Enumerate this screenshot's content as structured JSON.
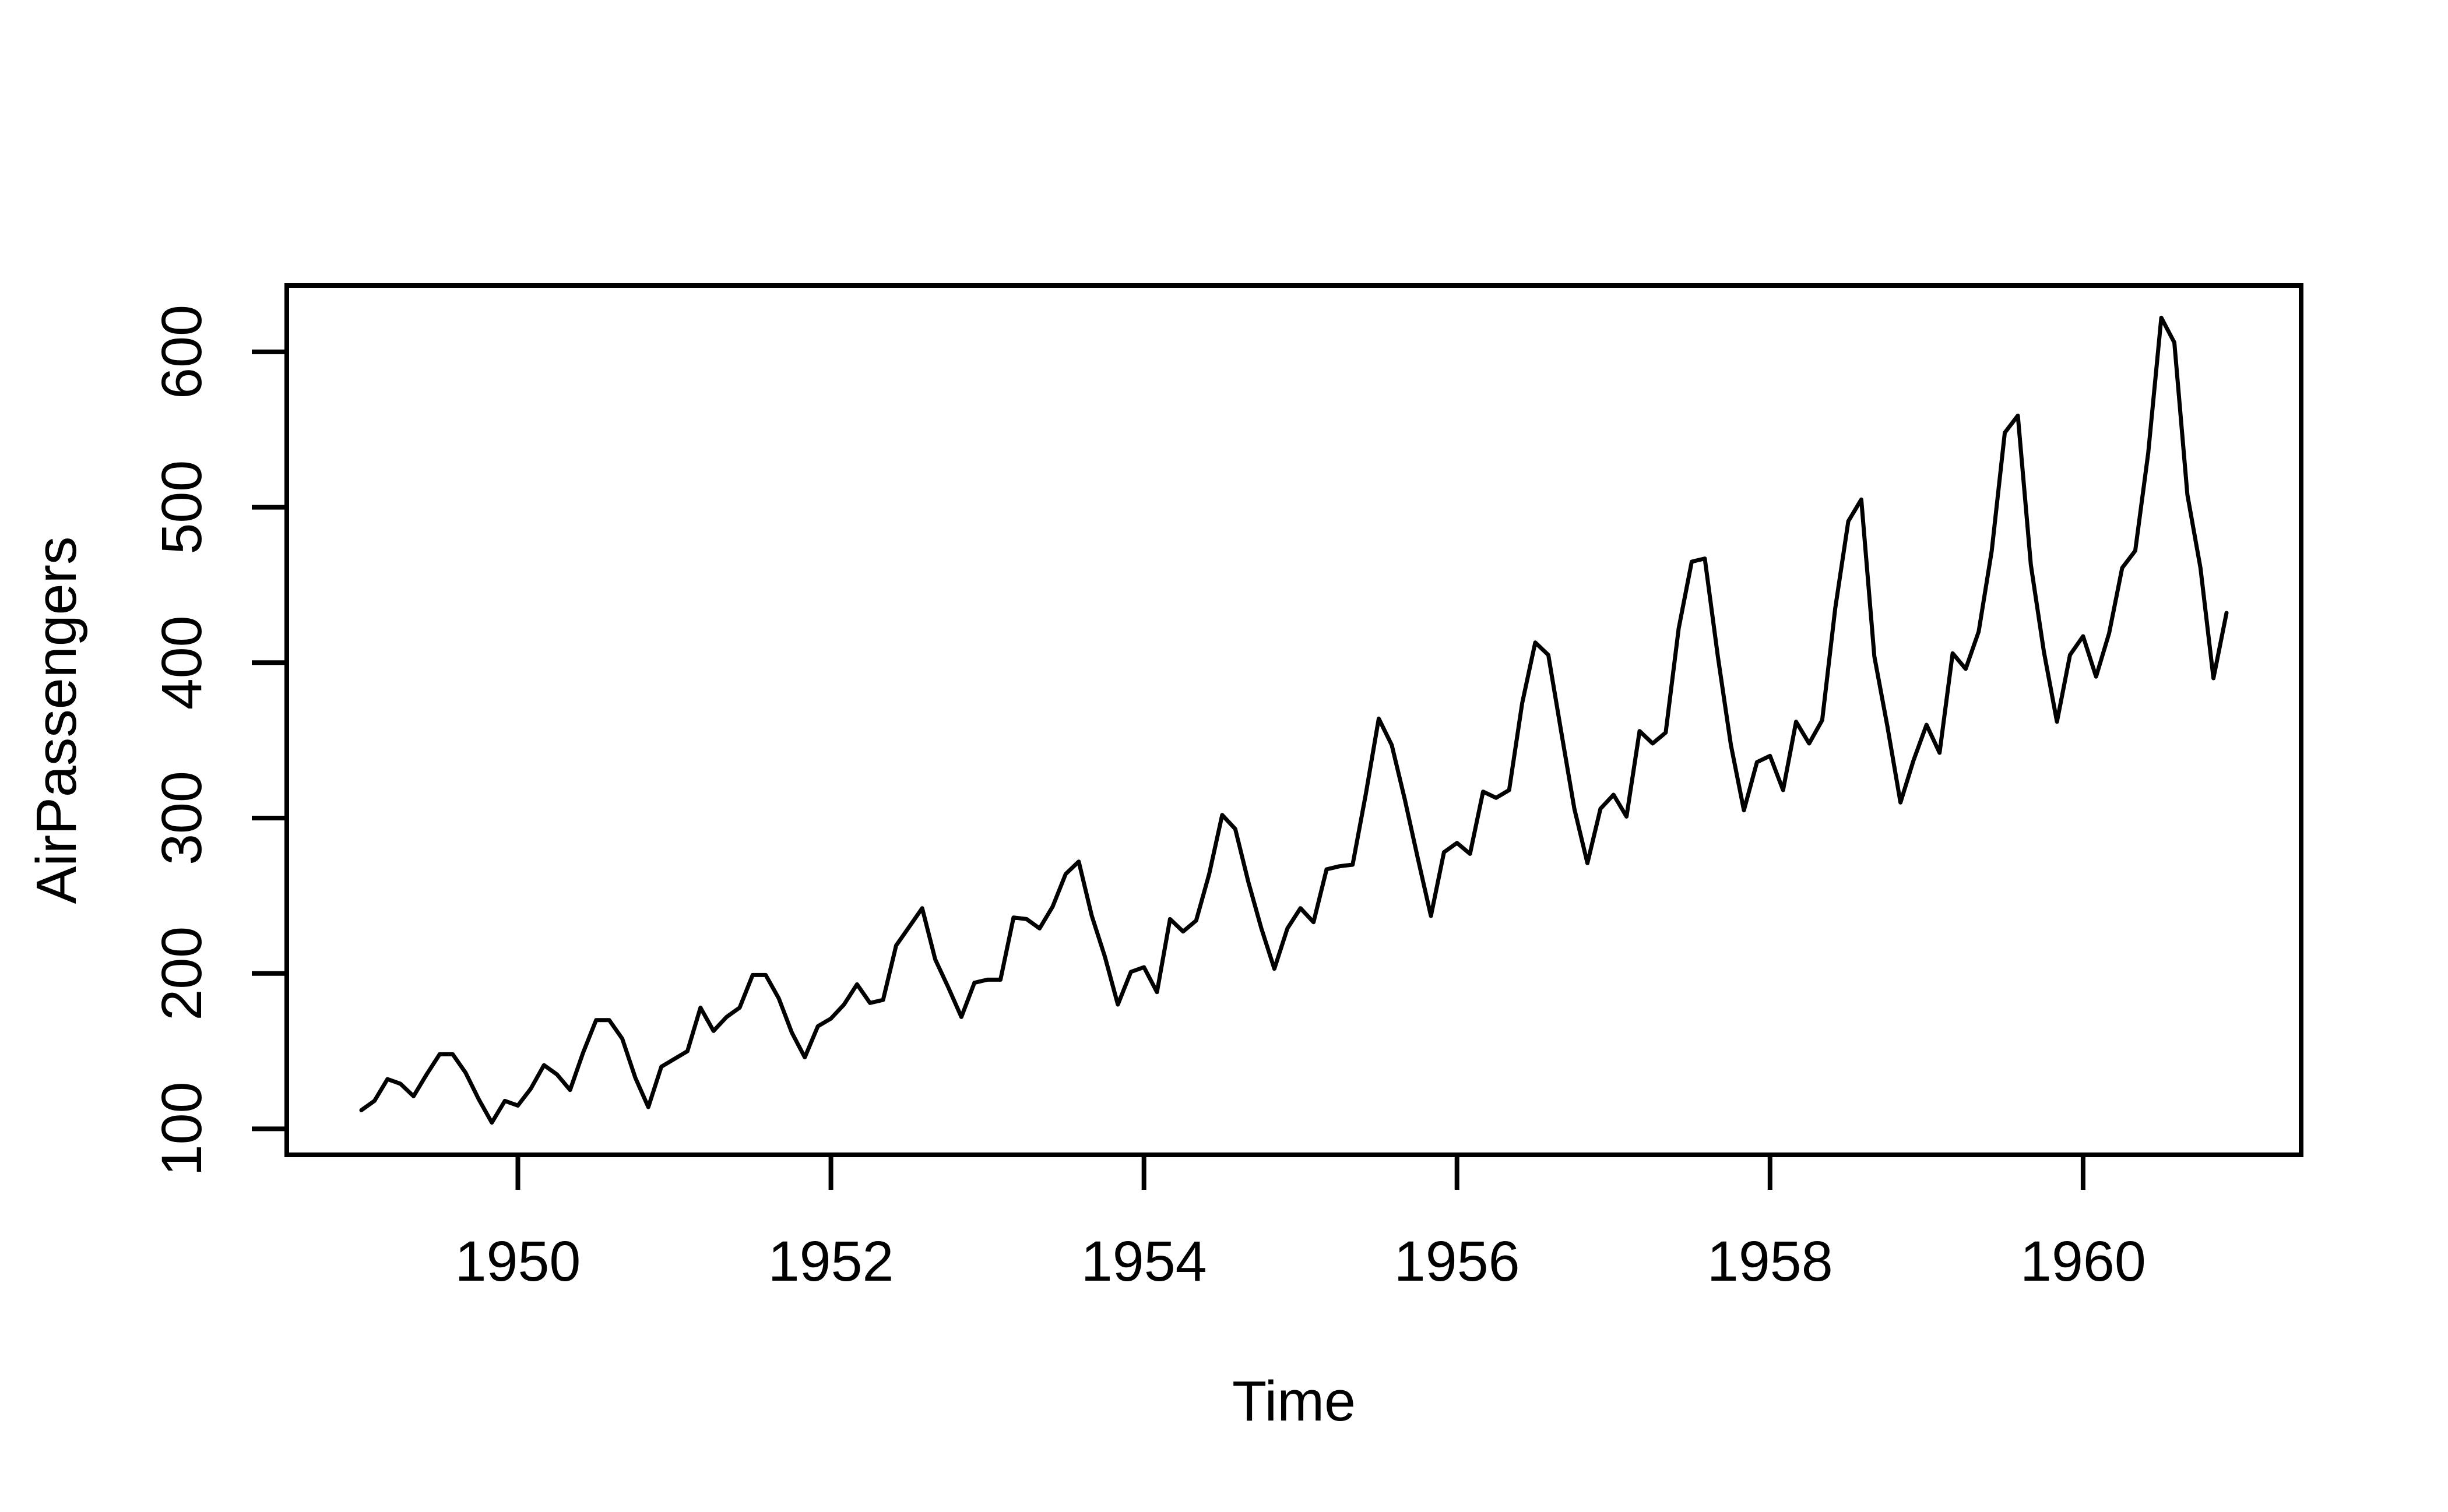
{
  "figure": {
    "background": "#FFFFFF",
    "foreground": "#000000"
  },
  "chart_data": {
    "type": "line",
    "title": "",
    "xlabel": "Time",
    "ylabel": "AirPassengers",
    "grid": false,
    "frame": true,
    "legend": null,
    "line_color": "#000000",
    "xlim": [
      1948.5233,
      1961.3933
    ],
    "ylim": [
      83.28,
      642.72
    ],
    "x_tick_values": [
      1950,
      1952,
      1954,
      1956,
      1958,
      1960
    ],
    "x_tick_labels": [
      "1950",
      "1952",
      "1954",
      "1956",
      "1958",
      "1960"
    ],
    "y_tick_values": [
      100,
      200,
      300,
      400,
      500,
      600
    ],
    "y_tick_labels": [
      "100",
      "200",
      "300",
      "400",
      "500",
      "600"
    ],
    "series": [
      {
        "name": "AirPassengers",
        "start_year": 1949,
        "frequency": 12,
        "values": [
          112,
          118,
          132,
          129,
          121,
          135,
          148,
          148,
          136,
          119,
          104,
          118,
          115,
          126,
          141,
          135,
          125,
          149,
          170,
          170,
          158,
          133,
          114,
          140,
          145,
          150,
          178,
          163,
          172,
          178,
          199,
          199,
          184,
          162,
          146,
          166,
          171,
          180,
          193,
          181,
          183,
          218,
          230,
          242,
          209,
          191,
          172,
          194,
          196,
          196,
          236,
          235,
          229,
          243,
          264,
          272,
          237,
          211,
          180,
          201,
          204,
          188,
          235,
          227,
          234,
          264,
          302,
          293,
          259,
          229,
          203,
          229,
          242,
          233,
          267,
          269,
          270,
          315,
          364,
          347,
          312,
          274,
          237,
          278,
          284,
          277,
          317,
          313,
          318,
          374,
          413,
          405,
          355,
          306,
          271,
          306,
          315,
          301,
          356,
          348,
          355,
          422,
          465,
          467,
          404,
          347,
          305,
          336,
          340,
          318,
          362,
          348,
          363,
          435,
          491,
          505,
          404,
          359,
          310,
          337,
          360,
          342,
          406,
          396,
          420,
          472,
          548,
          559,
          463,
          407,
          362,
          405,
          417,
          391,
          419,
          461,
          472,
          535,
          622,
          606,
          508,
          461,
          390,
          432
        ]
      }
    ]
  }
}
